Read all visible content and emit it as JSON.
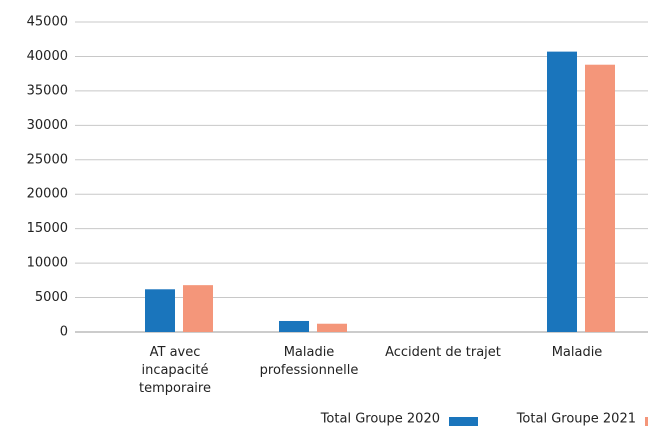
{
  "chart_data": {
    "type": "bar",
    "categories": [
      "AT avec incapacité temporaire",
      "Maladie professionnelle",
      "Accident de trajet",
      "Maladie"
    ],
    "series": [
      {
        "name": "Total Groupe 2020",
        "color": "#1a75bc",
        "values": [
          6200,
          1600,
          0,
          40700
        ]
      },
      {
        "name": "Total Groupe 2021",
        "color": "#f4967a",
        "values": [
          6800,
          1200,
          0,
          38800
        ]
      }
    ],
    "ylim": [
      0,
      45000
    ],
    "yticks": [
      0,
      5000,
      10000,
      15000,
      20000,
      25000,
      30000,
      35000,
      40000,
      45000
    ],
    "grid": true,
    "legend": "bottom"
  }
}
